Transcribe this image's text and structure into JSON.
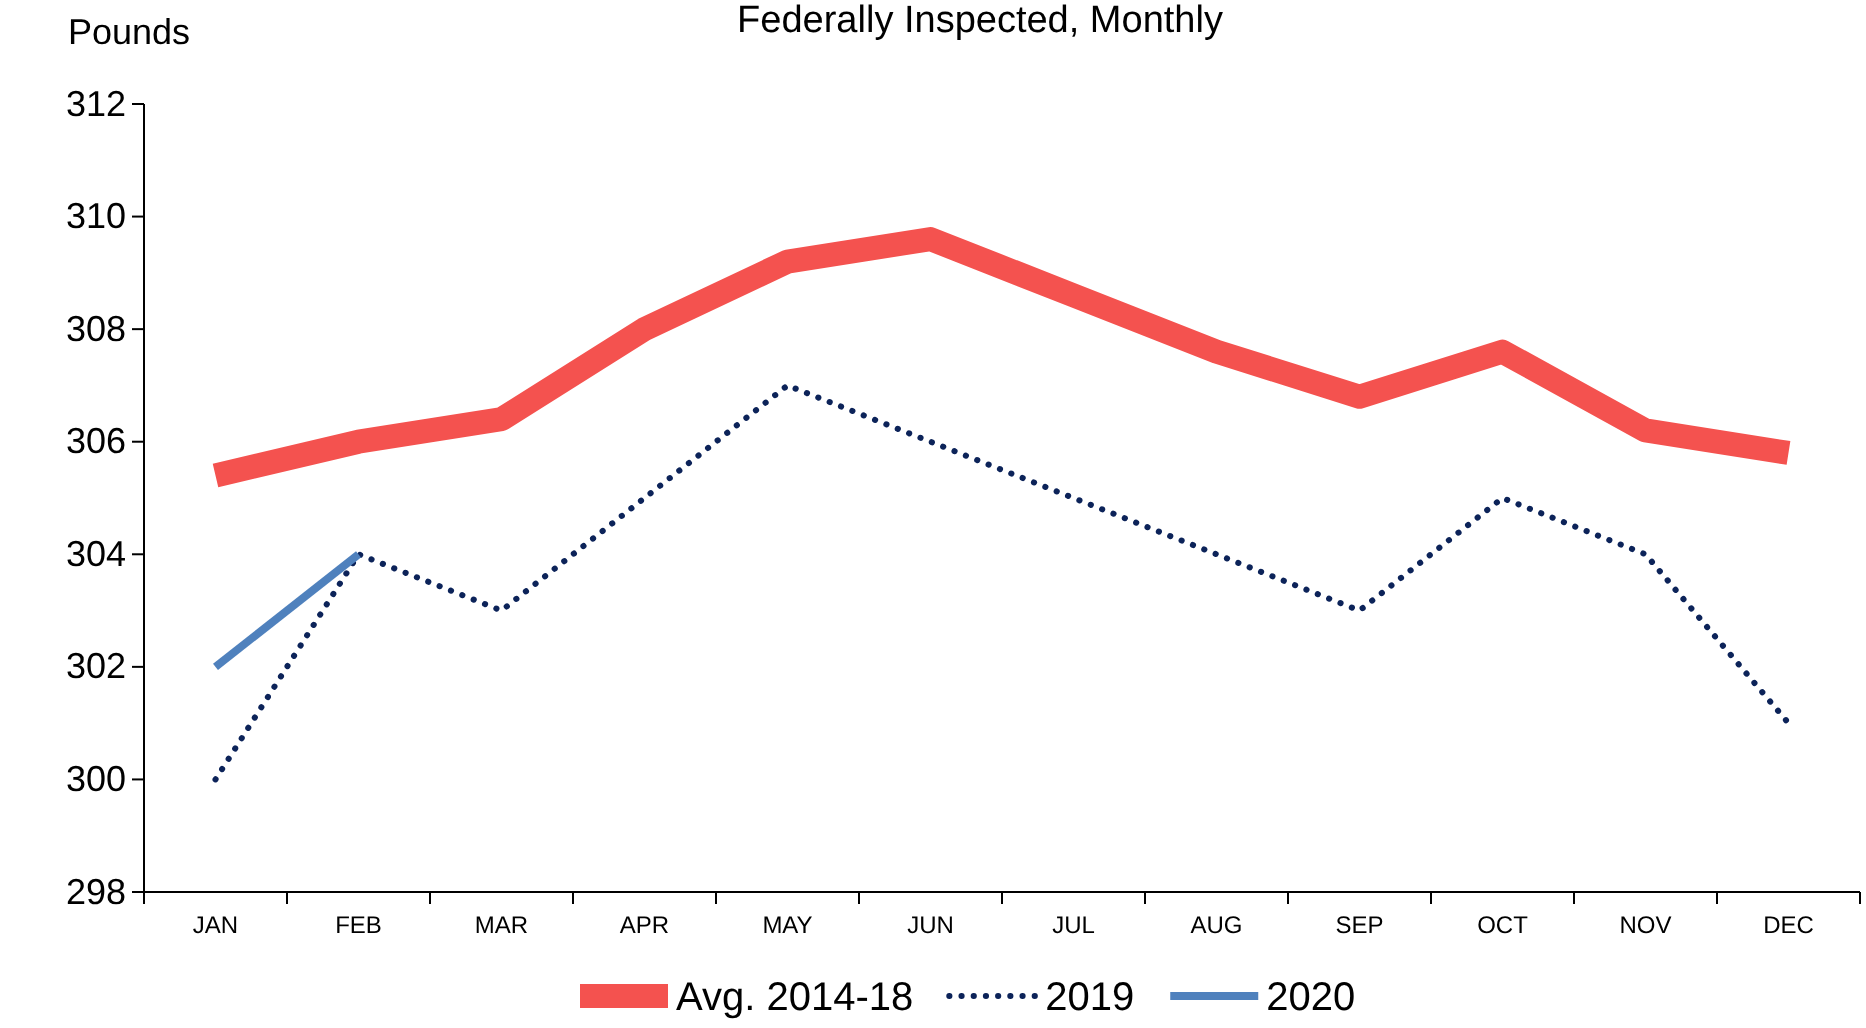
{
  "chart_data": {
    "type": "line",
    "title": "Federally Inspected, Monthly",
    "ylabel": "Pounds",
    "categories": [
      "JAN",
      "FEB",
      "MAR",
      "APR",
      "MAY",
      "JUN",
      "JUL",
      "AUG",
      "SEP",
      "OCT",
      "NOV",
      "DEC"
    ],
    "series": [
      {
        "name": "Avg. 2014-18",
        "color": "#f4524f",
        "values": [
          305.4,
          306.0,
          306.4,
          308.0,
          309.2,
          309.6,
          308.6,
          307.6,
          306.8,
          307.6,
          306.2,
          305.8
        ]
      },
      {
        "name": "2019",
        "color": "#0c2359",
        "line_style": "dotted",
        "values": [
          300,
          304,
          303,
          305,
          307,
          306,
          305,
          304,
          303,
          305,
          304,
          301
        ]
      },
      {
        "name": "2020",
        "color": "#4f81bd",
        "values": [
          302,
          304,
          null,
          null,
          null,
          null,
          null,
          null,
          null,
          null,
          null,
          null
        ]
      }
    ],
    "ylim": [
      298,
      312
    ],
    "yticks": [
      298,
      300,
      302,
      304,
      306,
      308,
      310,
      312
    ],
    "grid": false,
    "legend": "bottom"
  }
}
